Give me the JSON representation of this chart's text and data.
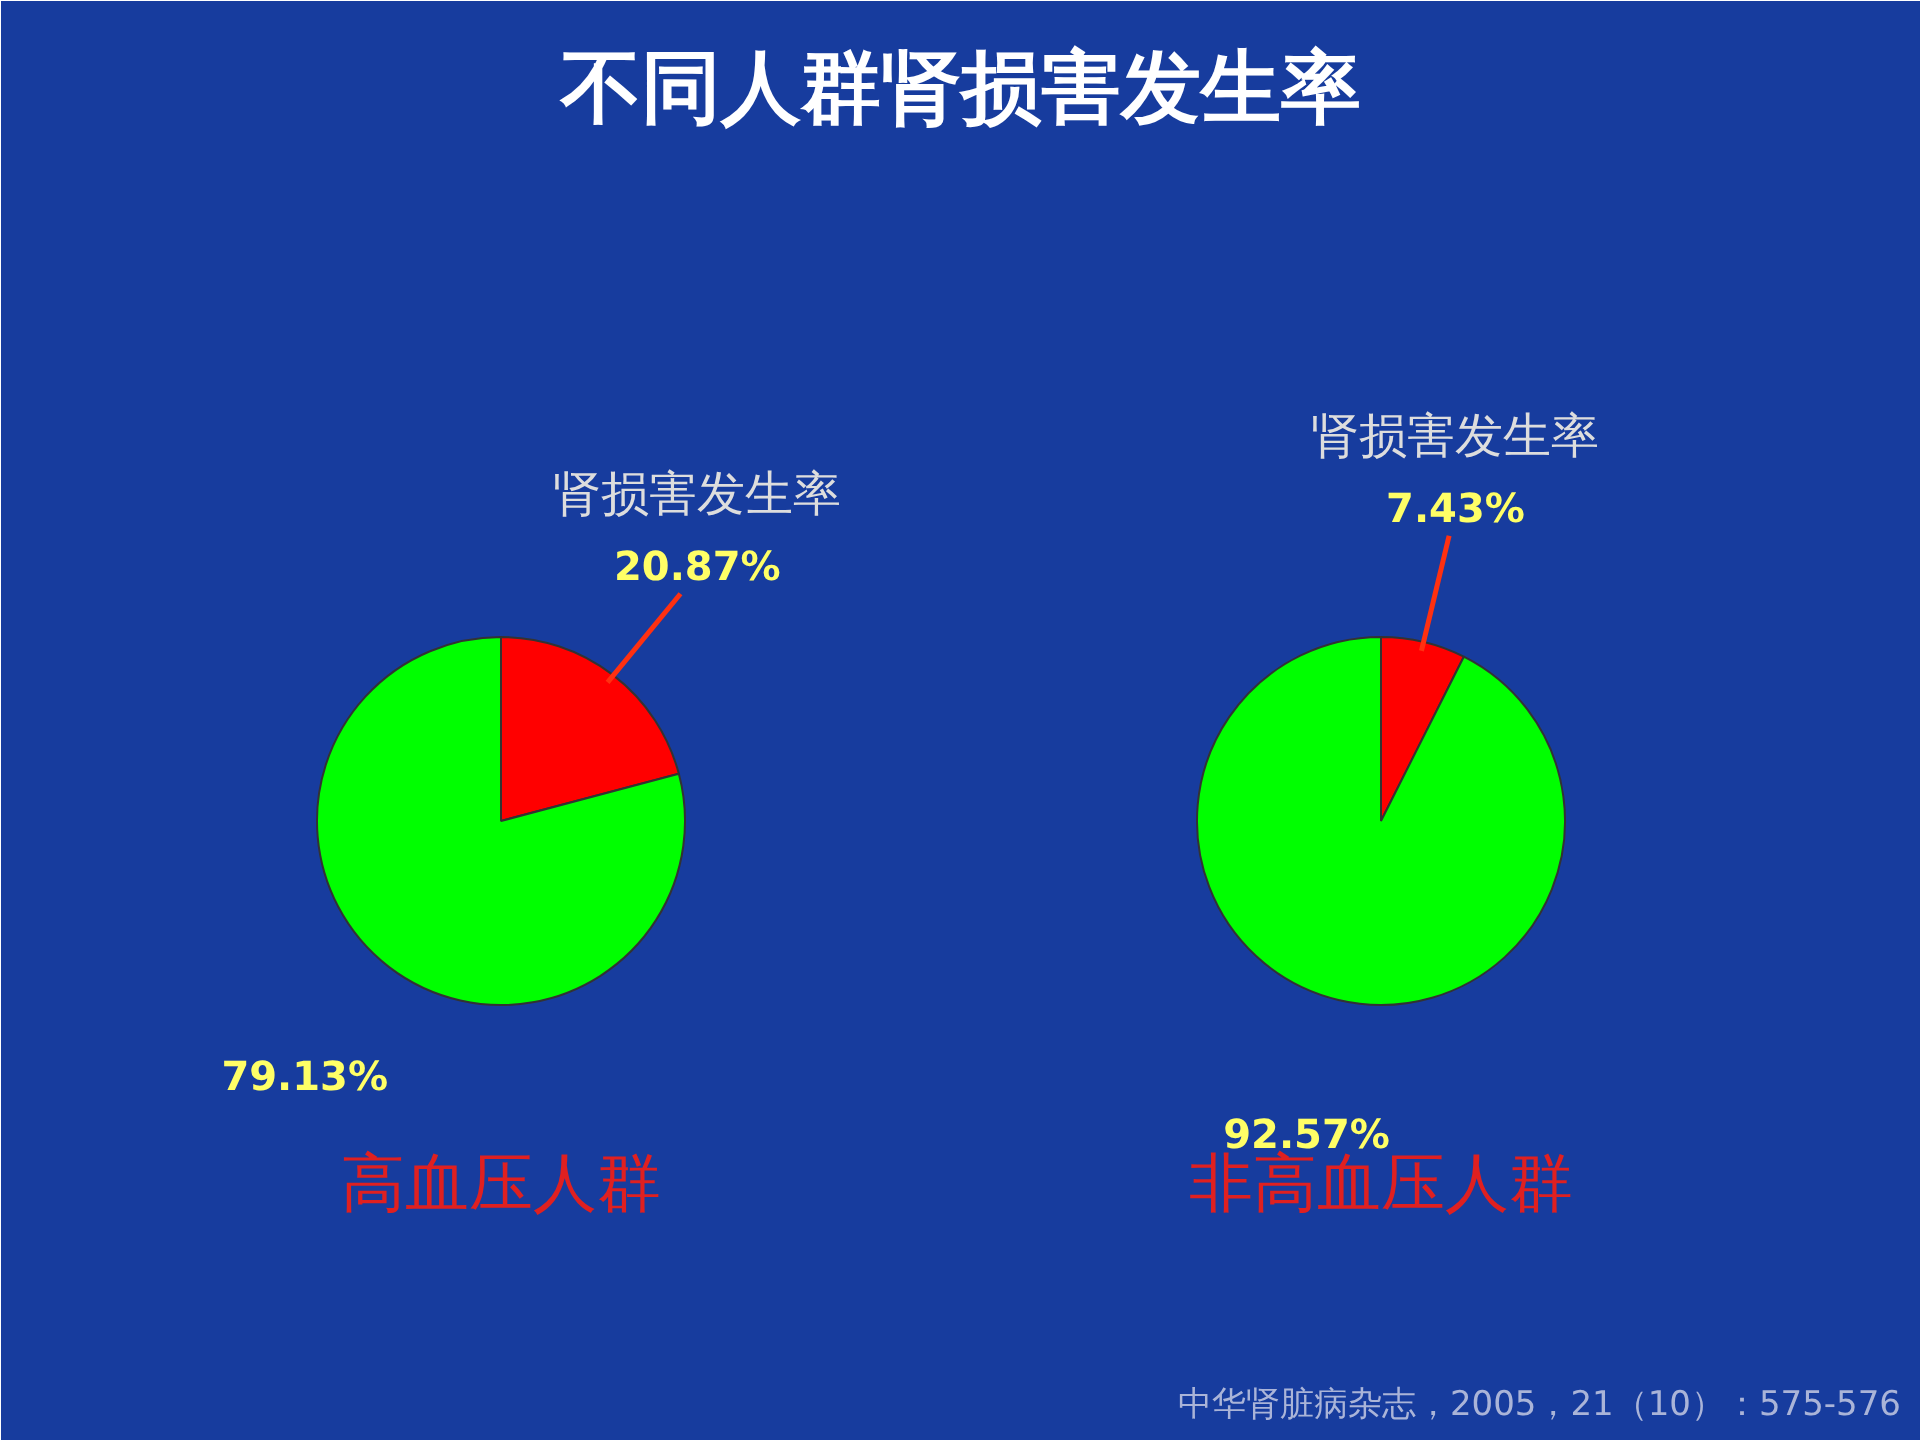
{
  "chart_data": [
    {
      "type": "pie",
      "title": "不同人群肾损害发生率",
      "categories": [
        "肾损害发生率",
        null
      ],
      "values": [
        20.87,
        79.13
      ],
      "value_labels": [
        "20.87%",
        "79.13%"
      ],
      "colors": [
        "#ff0000",
        "#00ff00"
      ],
      "xlabel": "高血压人群"
    },
    {
      "type": "pie",
      "categories": [
        "肾损害发生率",
        null
      ],
      "values": [
        7.43,
        92.57
      ],
      "value_labels": [
        "7.43%",
        "92.57%"
      ],
      "colors": [
        "#ff0000",
        "#00ff00"
      ],
      "xlabel": "非高血压人群",
      "annotations": [
        "中华肾脏病杂志，2005，21（10）：575-576"
      ]
    }
  ]
}
